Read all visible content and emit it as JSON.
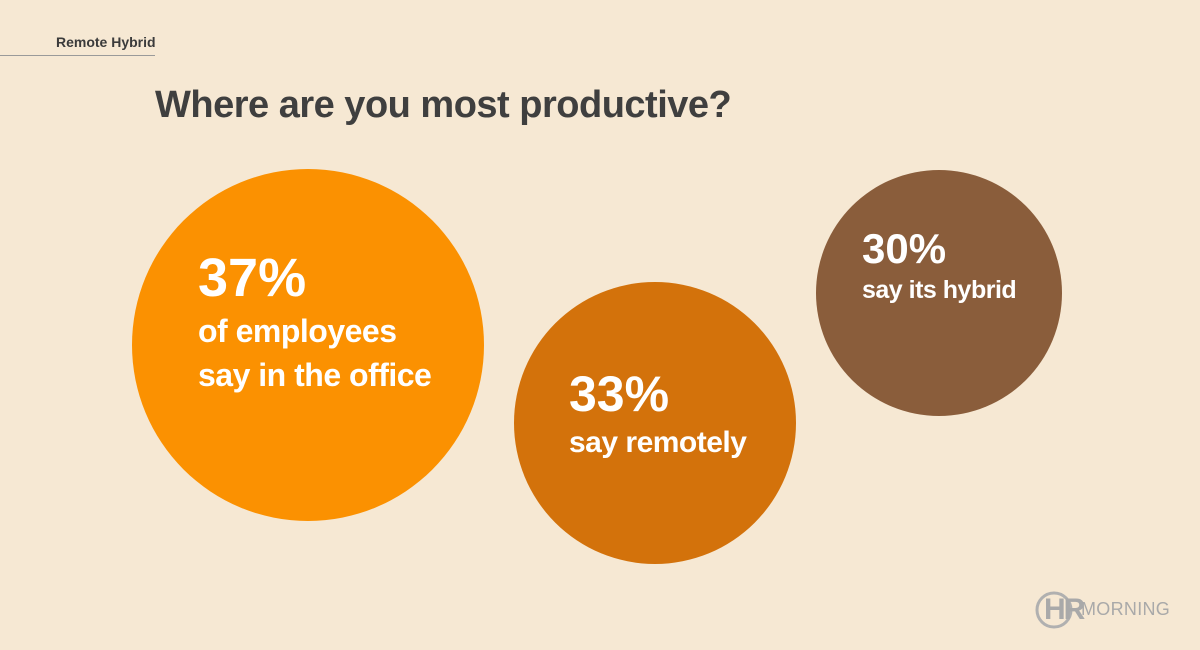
{
  "header": {
    "tag": "Remote Hybrid",
    "title": "Where are you most productive?"
  },
  "chart_data": {
    "type": "bubble",
    "title": "Where are you most productive?",
    "items": [
      {
        "value": 37,
        "value_label": "37%",
        "label_lines": [
          "of employees",
          "say in the office"
        ],
        "color": "#fb9101"
      },
      {
        "value": 33,
        "value_label": "33%",
        "label_lines": [
          "say remotely"
        ],
        "color": "#d3720b"
      },
      {
        "value": 30,
        "value_label": "30%",
        "label_lines": [
          "say its hybrid"
        ],
        "color": "#8a5d3b"
      }
    ]
  },
  "footer": {
    "logo_hr": "HR",
    "logo_word": "MORNING"
  }
}
